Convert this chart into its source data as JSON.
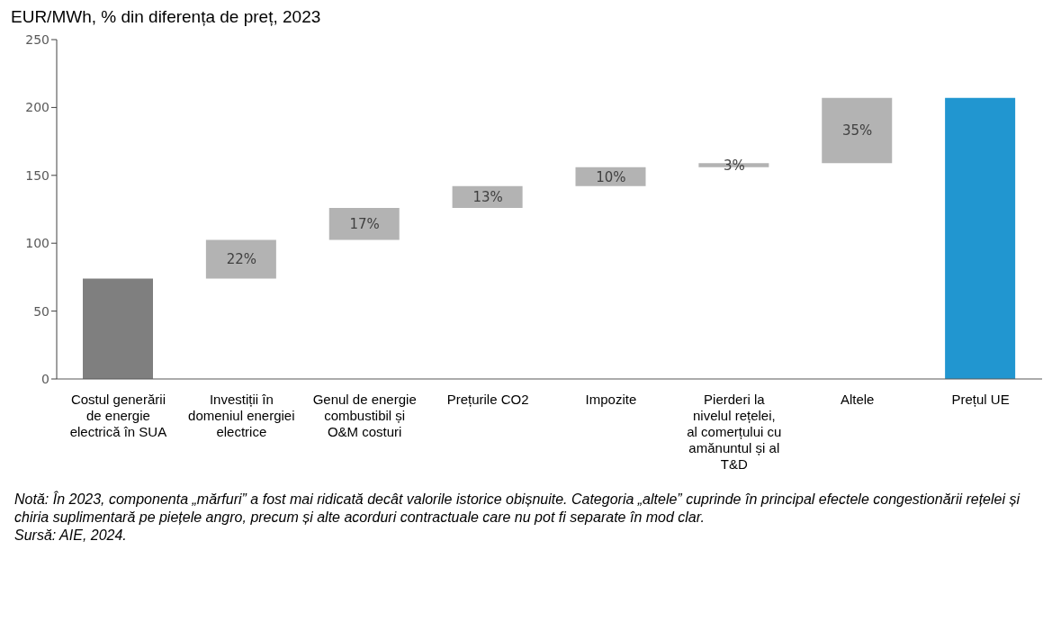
{
  "chart_data": {
    "type": "bar",
    "title": "EUR/MWh, % din diferența de preț, 2023",
    "categories": [
      "Costul generării de energie electrică în SUA",
      "Investiții în domeniul energiei electrice",
      "Genul de energie combustibil și O&M costuri",
      "Prețurile CO2",
      "Impozite",
      "Pierderi la nivelul rețelei, al comerțului cu amănuntul și al T&D",
      "Altele",
      "Prețul UE"
    ],
    "values": [
      74,
      28.5,
      23.5,
      16,
      14,
      3,
      48,
      207
    ],
    "base": [
      0,
      74,
      102.5,
      126,
      142,
      156,
      159,
      0
    ],
    "colors": [
      "#7f7f7f",
      "#b3b3b3",
      "#b3b3b3",
      "#b3b3b3",
      "#b3b3b3",
      "#b3b3b3",
      "#b3b3b3",
      "#2196d0"
    ],
    "ylim": [
      0,
      250
    ],
    "yticks": [
      0,
      50,
      100,
      150,
      200,
      250
    ],
    "grid": false,
    "legend": false,
    "annotations": [
      {
        "text": "22%",
        "x": "Investiții în domeniul energiei electrice",
        "y": 102.5
      },
      {
        "text": "17%",
        "x": "Genul de energie combustibil și O&M costuri",
        "y": 126
      },
      {
        "text": "13%",
        "x": "Prețurile CO2",
        "y": 142
      },
      {
        "text": "10%",
        "x": "Impozite",
        "y": 156
      },
      {
        "text": "3%",
        "x": "Pierderi la nivelul rețelei, al comerțului cu amănuntul și al T&D",
        "y": 159
      },
      {
        "text": "35%",
        "x": "Altele",
        "y": 207
      },
      "Notă: În 2023, componenta „mărfuri” a fost mai ridicată decât valorile istorice obișnuite. Categoria „altele” cuprinde în principal efectele congestionării rețelei și chiria suplimentară pe piețele angro, precum și alte acorduri contractuale care nu pot fi separate în mod clar.",
      "Sursă: AIE, 2024."
    ]
  }
}
